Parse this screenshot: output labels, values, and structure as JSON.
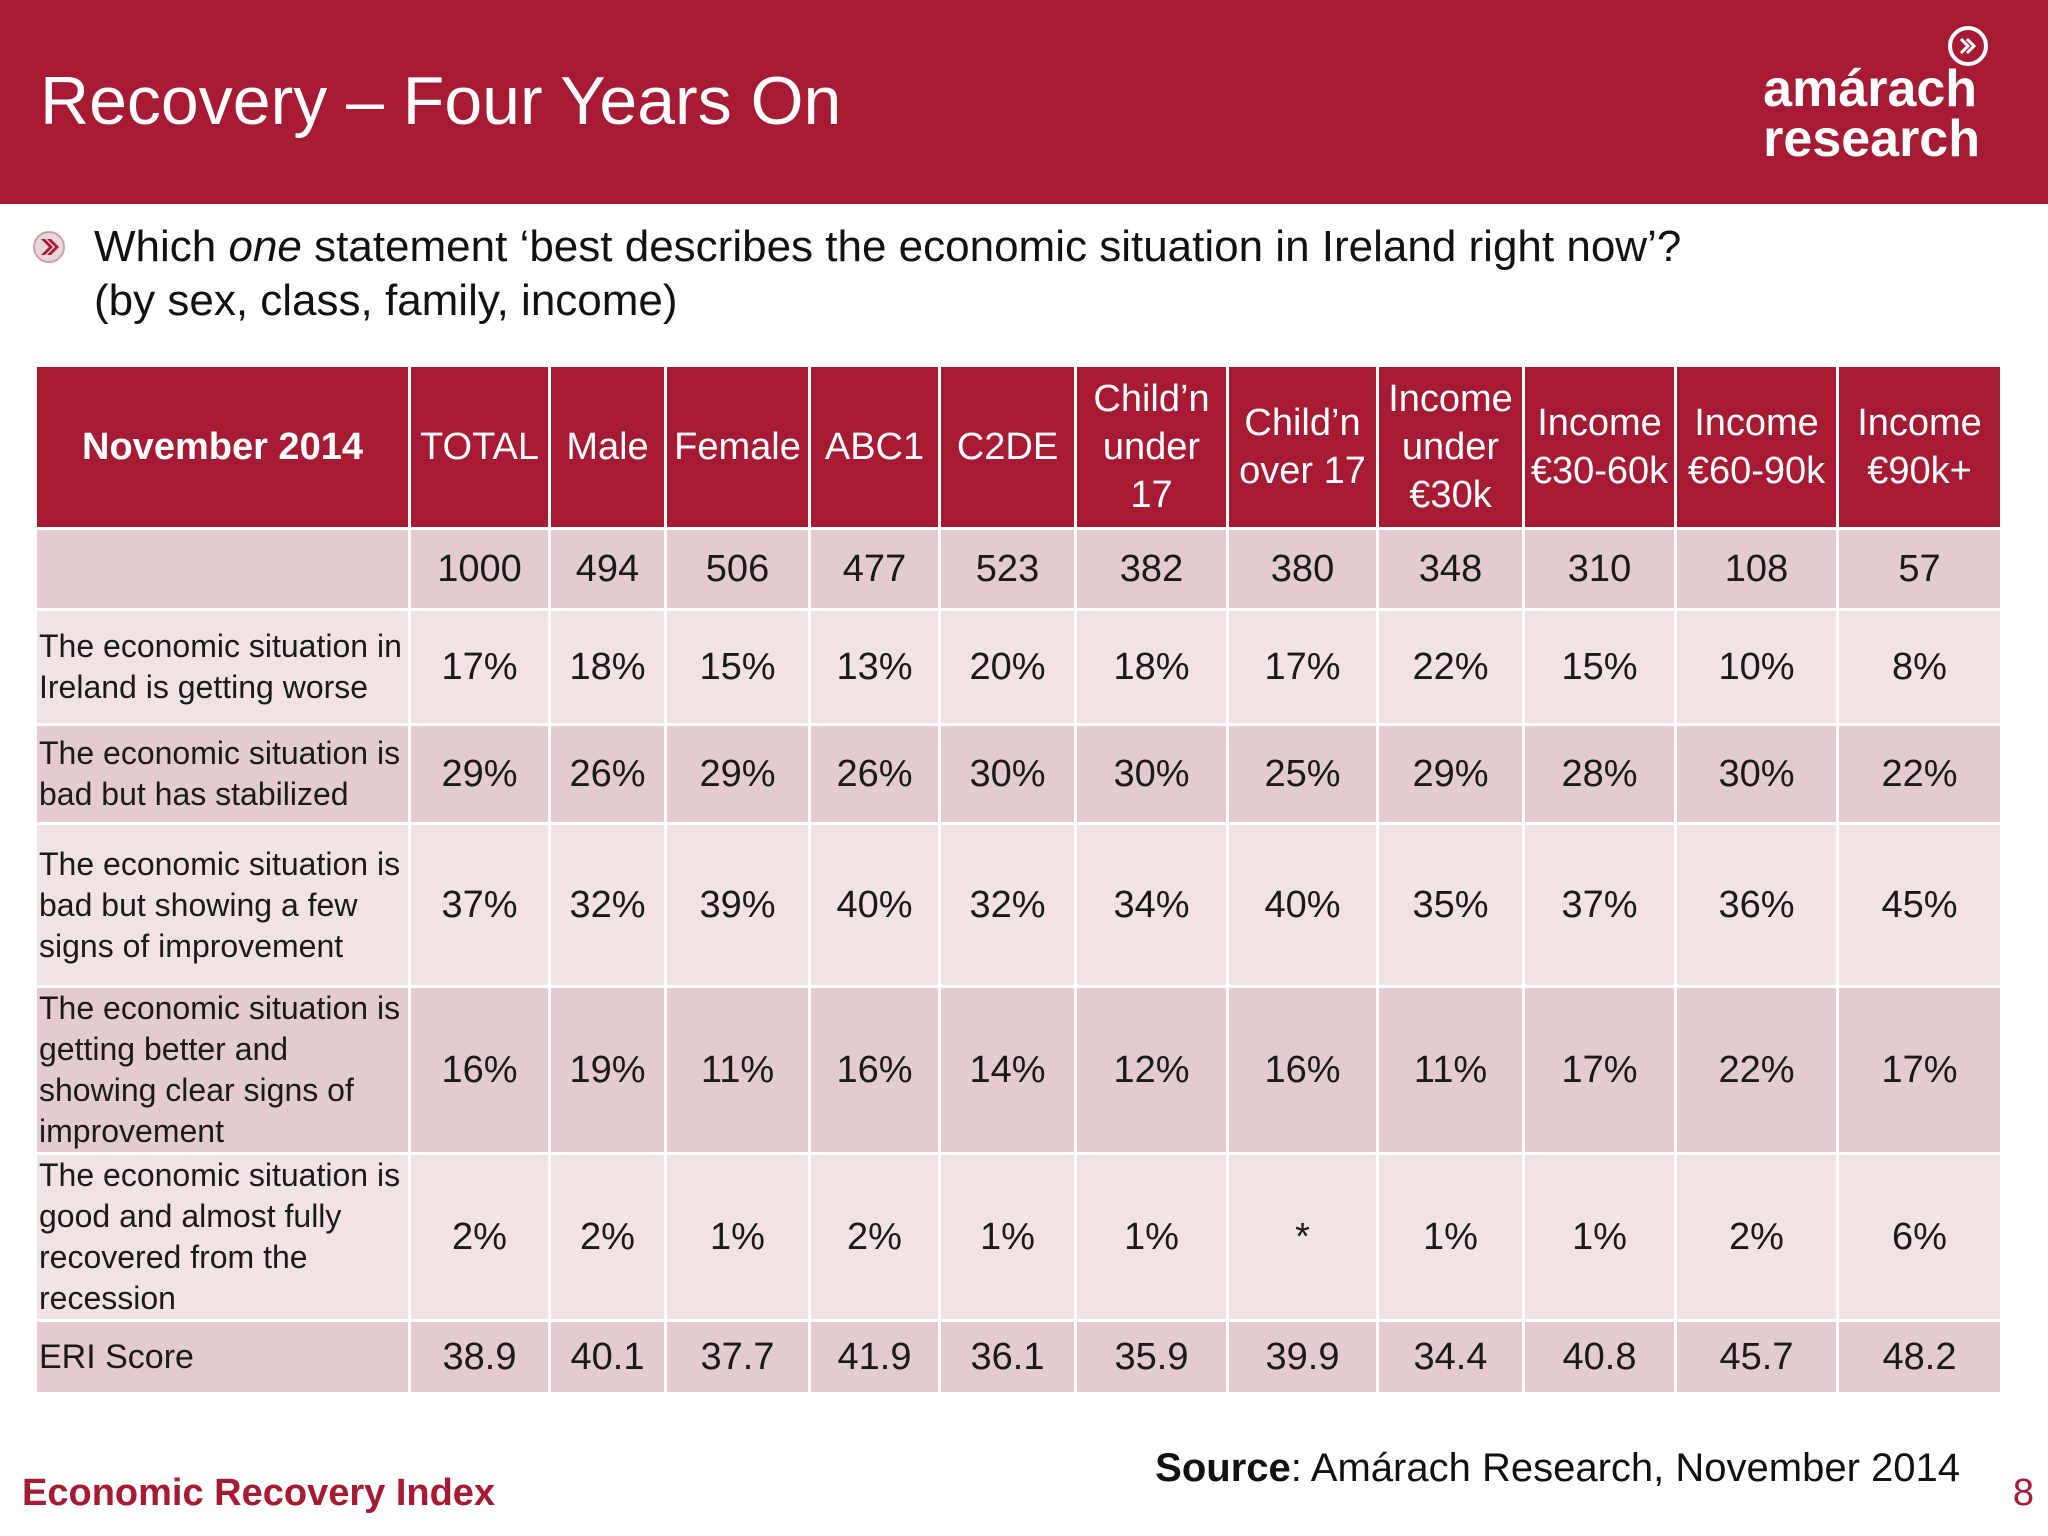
{
  "slide": {
    "title": "Recovery – Four Years On",
    "logo_text": "amárach\nresearch",
    "logo_icon": "chevron-circle-icon",
    "bullet_icon": "chevron-bullet-icon",
    "question_pre": "Which ",
    "question_em": "one",
    "question_post": " statement ‘best describes the economic situation in Ireland right now’?",
    "question_line2": "(by sex, class, family, income)",
    "footer_label": "Economic Recovery Index",
    "source_label": "Source",
    "source_text": ": Amárach Research, November 2014",
    "page_number": "8",
    "colors": {
      "brand": "#a71a34",
      "row_light": "#f1e2e4",
      "row_dark": "#e3cbcf"
    }
  },
  "table": {
    "corner_label": "November 2014",
    "columns": [
      "TOTAL",
      "Male",
      "Female",
      "ABC1",
      "C2DE",
      "Child’n under 17",
      "Child’n over 17",
      "Income under €30k",
      "Income €30-60k",
      "Income €60-90k",
      "Income €90k+"
    ],
    "base_sizes": [
      "1000",
      "494",
      "506",
      "477",
      "523",
      "382",
      "380",
      "348",
      "310",
      "108",
      "57"
    ],
    "rows": [
      {
        "label": "The economic situation in Ireland is getting worse",
        "values": [
          "17%",
          "18%",
          "15%",
          "13%",
          "20%",
          "18%",
          "17%",
          "22%",
          "15%",
          "10%",
          "8%"
        ]
      },
      {
        "label": "The economic situation is bad but has stabilized",
        "values": [
          "29%",
          "26%",
          "29%",
          "26%",
          "30%",
          "30%",
          "25%",
          "29%",
          "28%",
          "30%",
          "22%"
        ]
      },
      {
        "label": "The economic situation is bad but showing a few signs of improvement",
        "values": [
          "37%",
          "32%",
          "39%",
          "40%",
          "32%",
          "34%",
          "40%",
          "35%",
          "37%",
          "36%",
          "45%"
        ]
      },
      {
        "label": "The economic situation is getting better and showing clear signs of improvement",
        "values": [
          "16%",
          "19%",
          "11%",
          "16%",
          "14%",
          "12%",
          "16%",
          "11%",
          "17%",
          "22%",
          "17%"
        ]
      },
      {
        "label": "The economic situation is good and almost fully recovered from the recession",
        "values": [
          "2%",
          "2%",
          "1%",
          "2%",
          "1%",
          "1%",
          "*",
          "1%",
          "1%",
          "2%",
          "6%"
        ]
      }
    ],
    "eri": {
      "label": "ERI Score",
      "values": [
        "38.9",
        "40.1",
        "37.7",
        "41.9",
        "36.1",
        "35.9",
        "39.9",
        "34.4",
        "40.8",
        "45.7",
        "48.2"
      ]
    }
  }
}
